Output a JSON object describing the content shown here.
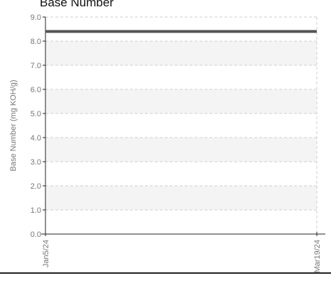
{
  "chart_data": {
    "type": "line",
    "title": "Base Number",
    "ylabel": "Base Number (mg KOH/g)",
    "xlabel": "",
    "x": [
      "Jan5/24",
      "Mar19/24"
    ],
    "series": [
      {
        "values": [
          8.4,
          8.4
        ]
      }
    ],
    "ylim": [
      0,
      9
    ],
    "y_ticks": [
      "0.0",
      "1.0",
      "2.0",
      "3.0",
      "4.0",
      "5.0",
      "6.0",
      "7.0",
      "8.0",
      "9.0"
    ],
    "x_ticks": [
      "Jan5/24",
      "Mar19/24"
    ],
    "grid": true,
    "legend": "none",
    "colors": {
      "line": "#555555",
      "band": "#f4f4f4",
      "grid": "#cfcfcf",
      "axis": "#222222",
      "tick_text": "#777777"
    }
  }
}
